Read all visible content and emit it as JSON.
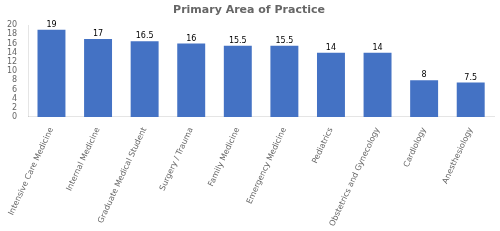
{
  "chart_data": {
    "type": "bar",
    "title": "Primary Area of Practice",
    "categories": [
      "Intensive Care Medicine",
      "Internal Medicine",
      "Graduate Medical Student",
      "Surgery / Trauma",
      "Family Medicine",
      "Emergency Medicine",
      "Pediatrics",
      "Obstetrics and Gynecology",
      "Cardiology",
      "Anesthesiology"
    ],
    "values": [
      19,
      17,
      16.5,
      16,
      15.5,
      15.5,
      14,
      14,
      8,
      7.5
    ],
    "color": "#4472c4",
    "ylim": [
      0,
      20
    ],
    "yticks": [
      0,
      2,
      4,
      6,
      8,
      10,
      12,
      14,
      16,
      18,
      20
    ],
    "grid": false,
    "data_labels": true
  }
}
